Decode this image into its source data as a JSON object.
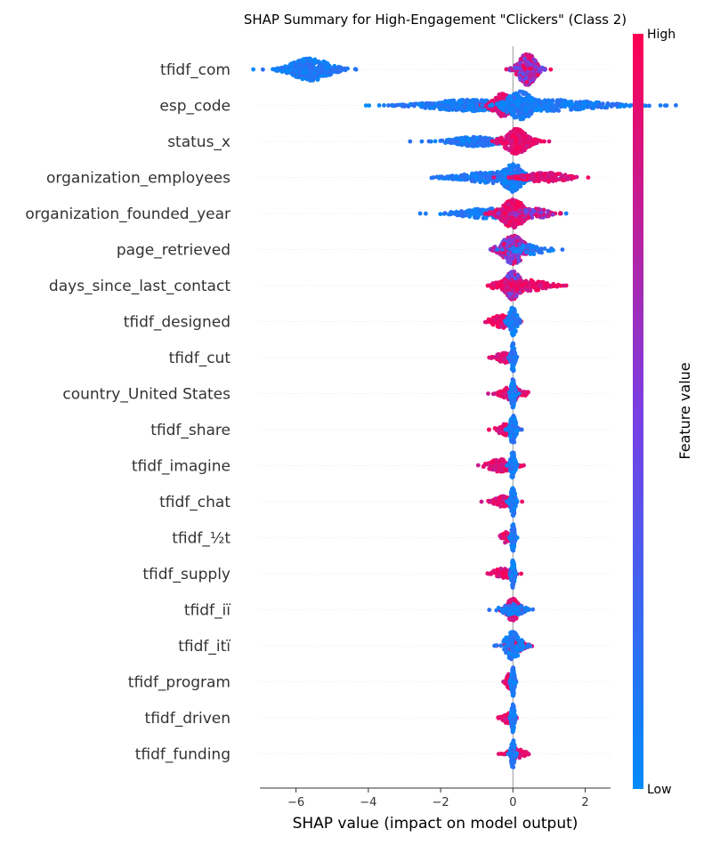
{
  "chart_data": {
    "type": "scatter",
    "subtype": "shap-beeswarm",
    "title": "SHAP Summary for High-Engagement \"Clickers\" (Class 2)",
    "xlabel": "SHAP value (impact on model output)",
    "ylabel": "",
    "xlim": [
      -7.0,
      2.7
    ],
    "xticks": [
      -6,
      -4,
      -2,
      0,
      2
    ],
    "xtick_labels": [
      "−6",
      "−4",
      "−2",
      "0",
      "2"
    ],
    "grid": false,
    "colorbar": {
      "label": "Feature value",
      "high_label": "High",
      "low_label": "Low",
      "low_color": "#008bfb",
      "mid_color": "#7a3ee3",
      "high_color": "#ff0052"
    },
    "features": [
      {
        "name": "tfidf_com",
        "clusters": [
          {
            "center": -5.6,
            "spread": 1.0,
            "height": 0.7,
            "count": 380,
            "color": "low"
          },
          {
            "center": 0.4,
            "spread": 0.45,
            "height": 1.0,
            "count": 260,
            "color": "mixed"
          }
        ]
      },
      {
        "name": "esp_code",
        "clusters": [
          {
            "center": -1.2,
            "spread": 2.1,
            "height": 0.35,
            "count": 420,
            "color": "low"
          },
          {
            "center": 1.0,
            "spread": 2.6,
            "height": 0.35,
            "count": 360,
            "color": "low"
          },
          {
            "center": -0.3,
            "spread": 0.5,
            "height": 0.75,
            "count": 160,
            "color": "high"
          },
          {
            "center": 0.2,
            "spread": 0.7,
            "height": 0.9,
            "count": 220,
            "color": "low"
          }
        ]
      },
      {
        "name": "status_x",
        "clusters": [
          {
            "center": -1.0,
            "spread": 1.2,
            "height": 0.3,
            "count": 220,
            "color": "low"
          },
          {
            "center": 0.1,
            "spread": 0.6,
            "height": 0.8,
            "count": 220,
            "color": "high"
          }
        ]
      },
      {
        "name": "organization_employees",
        "clusters": [
          {
            "center": -0.5,
            "spread": 1.7,
            "height": 0.35,
            "count": 260,
            "color": "low"
          },
          {
            "center": 0.0,
            "spread": 0.5,
            "height": 0.9,
            "count": 220,
            "color": "low"
          },
          {
            "center": 0.9,
            "spread": 1.1,
            "height": 0.3,
            "count": 140,
            "color": "high"
          }
        ]
      },
      {
        "name": "organization_founded_year",
        "clusters": [
          {
            "center": -0.7,
            "spread": 1.5,
            "height": 0.3,
            "count": 200,
            "color": "low"
          },
          {
            "center": 0.0,
            "spread": 0.6,
            "height": 0.9,
            "count": 260,
            "color": "high"
          },
          {
            "center": 0.6,
            "spread": 0.8,
            "height": 0.3,
            "count": 90,
            "color": "mixed"
          }
        ]
      },
      {
        "name": "page_retrieved",
        "clusters": [
          {
            "center": 0.0,
            "spread": 0.6,
            "height": 0.9,
            "count": 260,
            "color": "mixed"
          },
          {
            "center": 0.5,
            "spread": 0.8,
            "height": 0.3,
            "count": 60,
            "color": "low"
          }
        ]
      },
      {
        "name": "days_since_last_contact",
        "clusters": [
          {
            "center": 0.0,
            "spread": 0.4,
            "height": 0.9,
            "count": 200,
            "color": "mixed"
          },
          {
            "center": 0.4,
            "spread": 1.0,
            "height": 0.35,
            "count": 120,
            "color": "high"
          },
          {
            "center": -0.3,
            "spread": 0.5,
            "height": 0.3,
            "count": 60,
            "color": "high"
          }
        ]
      },
      {
        "name": "tfidf_designed",
        "clusters": [
          {
            "center": -0.3,
            "spread": 0.55,
            "height": 0.4,
            "count": 110,
            "color": "high"
          },
          {
            "center": 0.0,
            "spread": 0.2,
            "height": 0.9,
            "count": 120,
            "color": "low"
          }
        ]
      },
      {
        "name": "tfidf_cut",
        "clusters": [
          {
            "center": -0.25,
            "spread": 0.35,
            "height": 0.35,
            "count": 70,
            "color": "high"
          },
          {
            "center": 0.0,
            "spread": 0.1,
            "height": 0.9,
            "count": 120,
            "color": "low"
          }
        ]
      },
      {
        "name": "country_United States",
        "clusters": [
          {
            "center": 0.0,
            "spread": 0.5,
            "height": 0.5,
            "count": 80,
            "color": "high"
          },
          {
            "center": 0.0,
            "spread": 0.1,
            "height": 0.9,
            "count": 120,
            "color": "low"
          }
        ]
      },
      {
        "name": "tfidf_share",
        "clusters": [
          {
            "center": -0.2,
            "spread": 0.4,
            "height": 0.35,
            "count": 70,
            "color": "high"
          },
          {
            "center": 0.0,
            "spread": 0.15,
            "height": 0.9,
            "count": 120,
            "color": "low"
          }
        ]
      },
      {
        "name": "tfidf_imagine",
        "clusters": [
          {
            "center": -0.35,
            "spread": 0.6,
            "height": 0.4,
            "count": 110,
            "color": "high"
          },
          {
            "center": 0.0,
            "spread": 0.12,
            "height": 0.9,
            "count": 110,
            "color": "low"
          }
        ]
      },
      {
        "name": "tfidf_chat",
        "clusters": [
          {
            "center": -0.25,
            "spread": 0.45,
            "height": 0.35,
            "count": 80,
            "color": "high"
          },
          {
            "center": 0.0,
            "spread": 0.12,
            "height": 0.9,
            "count": 110,
            "color": "low"
          }
        ]
      },
      {
        "name": "tfidf_½t",
        "clusters": [
          {
            "center": -0.2,
            "spread": 0.25,
            "height": 0.35,
            "count": 50,
            "color": "high"
          },
          {
            "center": 0.0,
            "spread": 0.08,
            "height": 0.9,
            "count": 110,
            "color": "low"
          }
        ]
      },
      {
        "name": "tfidf_supply",
        "clusters": [
          {
            "center": -0.3,
            "spread": 0.45,
            "height": 0.35,
            "count": 70,
            "color": "high"
          },
          {
            "center": 0.0,
            "spread": 0.08,
            "height": 0.9,
            "count": 110,
            "color": "low"
          }
        ]
      },
      {
        "name": "tfidf_iï",
        "clusters": [
          {
            "center": 0.0,
            "spread": 0.35,
            "height": 0.7,
            "count": 110,
            "color": "high"
          },
          {
            "center": 0.0,
            "spread": 0.6,
            "height": 0.35,
            "count": 70,
            "color": "low"
          }
        ]
      },
      {
        "name": "tfidf_itï",
        "clusters": [
          {
            "center": 0.1,
            "spread": 0.4,
            "height": 0.4,
            "count": 70,
            "color": "high"
          },
          {
            "center": 0.0,
            "spread": 0.4,
            "height": 0.9,
            "count": 110,
            "color": "low"
          }
        ]
      },
      {
        "name": "tfidf_program",
        "clusters": [
          {
            "center": -0.1,
            "spread": 0.15,
            "height": 0.5,
            "count": 60,
            "color": "high"
          },
          {
            "center": 0.0,
            "spread": 0.08,
            "height": 0.9,
            "count": 110,
            "color": "low"
          }
        ]
      },
      {
        "name": "tfidf_driven",
        "clusters": [
          {
            "center": -0.15,
            "spread": 0.25,
            "height": 0.35,
            "count": 50,
            "color": "high"
          },
          {
            "center": 0.0,
            "spread": 0.08,
            "height": 0.9,
            "count": 110,
            "color": "low"
          }
        ]
      },
      {
        "name": "tfidf_funding",
        "clusters": [
          {
            "center": 0.1,
            "spread": 0.4,
            "height": 0.35,
            "count": 50,
            "color": "high"
          },
          {
            "center": 0.0,
            "spread": 0.1,
            "height": 0.9,
            "count": 110,
            "color": "low"
          }
        ]
      }
    ]
  }
}
